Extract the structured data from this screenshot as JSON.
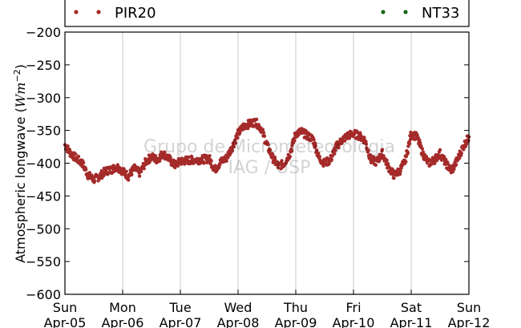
{
  "chart_data": {
    "type": "scatter",
    "ylabel": "Atmospheric longwave ($Wm^{-2}$)",
    "ylabel_parts": {
      "text": "Atmospheric longwave (",
      "unit_base": "Wm",
      "unit_exp": "−2",
      "close": ")"
    },
    "ylim": [
      -600,
      -200
    ],
    "yticks": [
      -200,
      -250,
      -300,
      -350,
      -400,
      -450,
      -500,
      -550,
      -600
    ],
    "ytick_labels": [
      "−200",
      "−250",
      "−300",
      "−350",
      "−400",
      "−450",
      "−500",
      "−550",
      "−600"
    ],
    "xlim": [
      0,
      7
    ],
    "xticks": [
      {
        "day": "Sun",
        "date": "Apr-05"
      },
      {
        "day": "Mon",
        "date": "Apr-06"
      },
      {
        "day": "Tue",
        "date": "Apr-07"
      },
      {
        "day": "Wed",
        "date": "Apr-08"
      },
      {
        "day": "Thu",
        "date": "Apr-09"
      },
      {
        "day": "Fri",
        "date": "Apr-10"
      },
      {
        "day": "Sat",
        "date": "Apr-11"
      },
      {
        "day": "Sun",
        "date": "Apr-12"
      }
    ],
    "grid": "vertical",
    "legend_placement": "top, above plot",
    "watermark": [
      "Grupo de Micrometeorologia",
      "IAG / USP"
    ],
    "series": [
      {
        "name": "PIR20",
        "color": "#a52a2a",
        "x": [
          0.0,
          0.1,
          0.2,
          0.3,
          0.4,
          0.5,
          0.6,
          0.7,
          0.8,
          0.9,
          1.0,
          1.1,
          1.2,
          1.3,
          1.4,
          1.5,
          1.6,
          1.7,
          1.8,
          1.9,
          2.0,
          2.1,
          2.2,
          2.3,
          2.4,
          2.5,
          2.6,
          2.7,
          2.8,
          2.9,
          3.0,
          3.1,
          3.2,
          3.3,
          3.4,
          3.5,
          3.6,
          3.7,
          3.8,
          3.9,
          4.0,
          4.1,
          4.2,
          4.3,
          4.4,
          4.5,
          4.6,
          4.7,
          4.8,
          4.9,
          5.0,
          5.1,
          5.2,
          5.3,
          5.4,
          5.5,
          5.6,
          5.7,
          5.8,
          5.9,
          6.0,
          6.1,
          6.2,
          6.3,
          6.4,
          6.5,
          6.6,
          6.7,
          6.8,
          6.9,
          7.0
        ],
        "y": [
          -372,
          -385,
          -393,
          -400,
          -418,
          -425,
          -420,
          -412,
          -410,
          -405,
          -412,
          -420,
          -408,
          -415,
          -398,
          -390,
          -395,
          -385,
          -393,
          -403,
          -397,
          -396,
          -395,
          -395,
          -394,
          -393,
          -410,
          -398,
          -392,
          -375,
          -355,
          -343,
          -340,
          -337,
          -347,
          -372,
          -392,
          -405,
          -400,
          -385,
          -355,
          -352,
          -358,
          -363,
          -392,
          -400,
          -395,
          -375,
          -365,
          -358,
          -355,
          -358,
          -365,
          -395,
          -398,
          -385,
          -405,
          -418,
          -412,
          -395,
          -355,
          -360,
          -385,
          -400,
          -395,
          -385,
          -400,
          -412,
          -395,
          -375,
          -360
        ]
      },
      {
        "name": "NT33",
        "color": "#1a6a1a",
        "x": [],
        "y": []
      }
    ]
  }
}
